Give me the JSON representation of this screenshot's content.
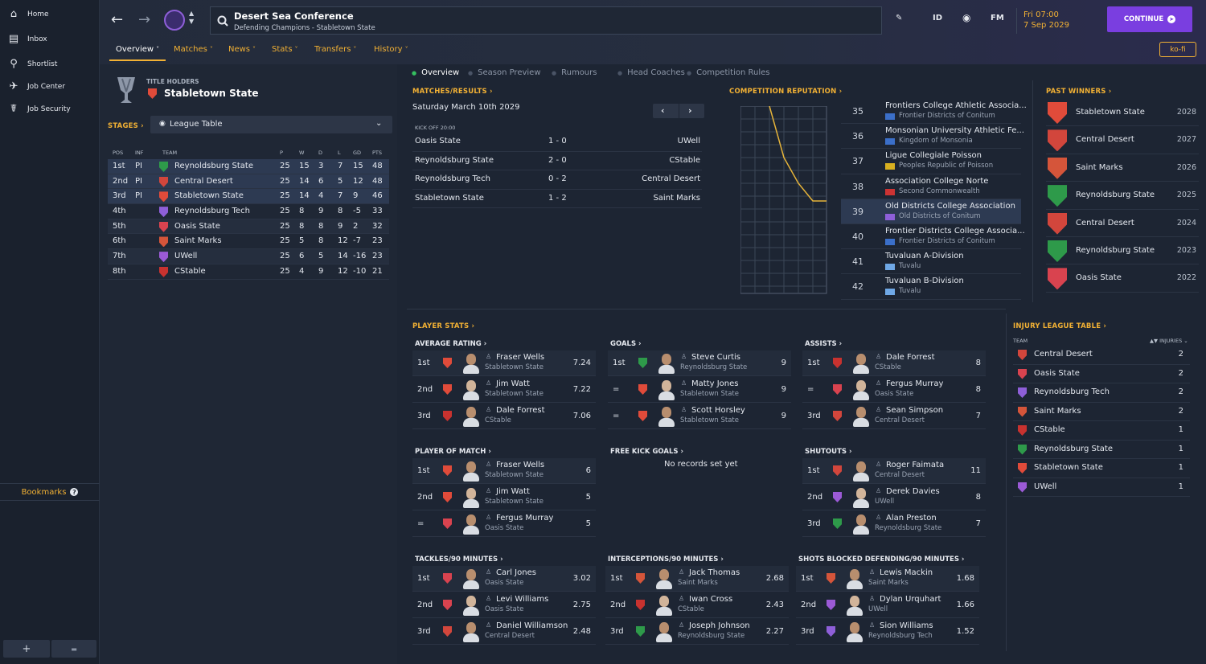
{
  "sidebar": {
    "items": [
      {
        "label": "Home",
        "icon": "home-icon"
      },
      {
        "label": "Inbox",
        "icon": "inbox-icon"
      },
      {
        "label": "Shortlist",
        "icon": "search-icon"
      },
      {
        "label": "Job Center",
        "icon": "job-center-icon"
      },
      {
        "label": "Job Security",
        "icon": "job-security-icon"
      }
    ],
    "bookmarks": "Bookmarks",
    "add": "+",
    "folder": "▬"
  },
  "header": {
    "title": "Desert Sea Conference",
    "subtitle": "Defending Champions - Stabletown State",
    "date_time": "Fri 07:00",
    "date": "7 Sep 2029",
    "continue": "CONTINUE",
    "kofi": "ko-fi",
    "id_label": "ID",
    "fm_label": "FM"
  },
  "tabs": [
    "Overview",
    "Matches",
    "News",
    "Stats",
    "Transfers",
    "History"
  ],
  "subtabs": [
    "Overview",
    "Season Preview",
    "Rumours",
    "Head Coaches",
    "Competition Rules"
  ],
  "holders": {
    "label": "TITLE HOLDERS",
    "team": "Stabletown State"
  },
  "stages": {
    "label": "STAGES",
    "selected": "League Table"
  },
  "league": {
    "headers": [
      "POS",
      "INF",
      "TEAM",
      "P",
      "W",
      "D",
      "L",
      "GD",
      "PTS"
    ],
    "rows": [
      {
        "pos": "1st",
        "inf": "PI",
        "team": "Reynoldsburg State",
        "p": "25",
        "w": "15",
        "d": "3",
        "l": "7",
        "gd": "15",
        "pts": "48",
        "c": "#2e9a4a"
      },
      {
        "pos": "2nd",
        "inf": "PI",
        "team": "Central Desert",
        "p": "25",
        "w": "14",
        "d": "6",
        "l": "5",
        "gd": "12",
        "pts": "48",
        "c": "#d2463c"
      },
      {
        "pos": "3rd",
        "inf": "PI",
        "team": "Stabletown State",
        "p": "25",
        "w": "14",
        "d": "4",
        "l": "7",
        "gd": "9",
        "pts": "46",
        "c": "#e04b3a"
      },
      {
        "pos": "4th",
        "inf": "",
        "team": "Reynoldsburg Tech",
        "p": "25",
        "w": "8",
        "d": "9",
        "l": "8",
        "gd": "-5",
        "pts": "33",
        "c": "#8e5fd8"
      },
      {
        "pos": "5th",
        "inf": "",
        "team": "Oasis State",
        "p": "25",
        "w": "8",
        "d": "8",
        "l": "9",
        "gd": "2",
        "pts": "32",
        "c": "#d9434f"
      },
      {
        "pos": "6th",
        "inf": "",
        "team": "Saint Marks",
        "p": "25",
        "w": "5",
        "d": "8",
        "l": "12",
        "gd": "-7",
        "pts": "23",
        "c": "#d5553a"
      },
      {
        "pos": "7th",
        "inf": "",
        "team": "UWell",
        "p": "25",
        "w": "6",
        "d": "5",
        "l": "14",
        "gd": "-16",
        "pts": "23",
        "c": "#9b5ad6"
      },
      {
        "pos": "8th",
        "inf": "",
        "team": "CStable",
        "p": "25",
        "w": "4",
        "d": "9",
        "l": "12",
        "gd": "-10",
        "pts": "21",
        "c": "#c8322f"
      }
    ]
  },
  "matches": {
    "label": "MATCHES/RESULTS",
    "date": "Saturday March 10th 2029",
    "kickoff": "KICK OFF 20:00",
    "rows": [
      {
        "home": "Oasis State",
        "score": "1 - 0",
        "away": "UWell"
      },
      {
        "home": "Reynoldsburg State",
        "score": "2 - 0",
        "away": "CStable"
      },
      {
        "home": "Reynoldsburg Tech",
        "score": "0 - 2",
        "away": "Central Desert"
      },
      {
        "home": "Stabletown State",
        "score": "1 - 2",
        "away": "Saint Marks"
      }
    ]
  },
  "reputation": {
    "label": "COMPETITION REPUTATION",
    "rows": [
      {
        "rank": "35",
        "name": "Frontiers College Athletic Associa...",
        "nation": "Frontier Districts of Conitum",
        "flag": "#3b6fc9"
      },
      {
        "rank": "36",
        "name": "Monsonian University Athletic Fe...",
        "nation": "Kingdom of Monsonia",
        "flag": "#3b6fc9"
      },
      {
        "rank": "37",
        "name": "Ligue Collegiale Poisson",
        "nation": "Peoples Republic of Poisson",
        "flag": "#d8b020"
      },
      {
        "rank": "38",
        "name": "Association College Norte",
        "nation": "Second Commonwealth",
        "flag": "#cc3333"
      },
      {
        "rank": "39",
        "name": "Old Districts College Association",
        "nation": "Old Districts of Conitum",
        "flag": "#8e5fd8"
      },
      {
        "rank": "40",
        "name": "Frontier Districts College Associa...",
        "nation": "Frontier Districts of Conitum",
        "flag": "#3b6fc9"
      },
      {
        "rank": "41",
        "name": "Tuvaluan A-Division",
        "nation": "Tuvalu",
        "flag": "#6fa8e6"
      },
      {
        "rank": "42",
        "name": "Tuvaluan B-Division",
        "nation": "Tuvalu",
        "flag": "#6fa8e6"
      }
    ]
  },
  "past_winners": {
    "label": "PAST WINNERS",
    "rows": [
      {
        "team": "Stabletown State",
        "year": "2028",
        "c": "#e04b3a"
      },
      {
        "team": "Central Desert",
        "year": "2027",
        "c": "#d2463c"
      },
      {
        "team": "Saint Marks",
        "year": "2026",
        "c": "#d5553a"
      },
      {
        "team": "Reynoldsburg State",
        "year": "2025",
        "c": "#2e9a4a"
      },
      {
        "team": "Central Desert",
        "year": "2024",
        "c": "#d2463c"
      },
      {
        "team": "Reynoldsburg State",
        "year": "2023",
        "c": "#2e9a4a"
      },
      {
        "team": "Oasis State",
        "year": "2022",
        "c": "#d9434f"
      }
    ]
  },
  "player_stats": {
    "label": "PLAYER STATS",
    "no_records": "No records set yet",
    "blocks": [
      {
        "title": "AVERAGE RATING",
        "rows": [
          {
            "pos": "1st",
            "name": "Fraser Wells",
            "team": "Stabletown State",
            "val": "7.24",
            "c": "#e04b3a"
          },
          {
            "pos": "2nd",
            "name": "Jim Watt",
            "team": "Stabletown State",
            "val": "7.22",
            "c": "#e04b3a"
          },
          {
            "pos": "3rd",
            "name": "Dale Forrest",
            "team": "CStable",
            "val": "7.06",
            "c": "#c8322f"
          }
        ]
      },
      {
        "title": "GOALS",
        "rows": [
          {
            "pos": "1st",
            "name": "Steve Curtis",
            "team": "Reynoldsburg State",
            "val": "9",
            "c": "#2e9a4a"
          },
          {
            "pos": "=",
            "name": "Matty Jones",
            "team": "Stabletown State",
            "val": "9",
            "c": "#e04b3a"
          },
          {
            "pos": "=",
            "name": "Scott Horsley",
            "team": "Stabletown State",
            "val": "9",
            "c": "#e04b3a"
          }
        ]
      },
      {
        "title": "ASSISTS",
        "rows": [
          {
            "pos": "1st",
            "name": "Dale Forrest",
            "team": "CStable",
            "val": "8",
            "c": "#c8322f"
          },
          {
            "pos": "=",
            "name": "Fergus Murray",
            "team": "Oasis State",
            "val": "8",
            "c": "#d9434f"
          },
          {
            "pos": "3rd",
            "name": "Sean Simpson",
            "team": "Central Desert",
            "val": "7",
            "c": "#d2463c"
          }
        ]
      },
      {
        "title": "PLAYER OF MATCH",
        "rows": [
          {
            "pos": "1st",
            "name": "Fraser Wells",
            "team": "Stabletown State",
            "val": "6",
            "c": "#e04b3a"
          },
          {
            "pos": "2nd",
            "name": "Jim Watt",
            "team": "Stabletown State",
            "val": "5",
            "c": "#e04b3a"
          },
          {
            "pos": "=",
            "name": "Fergus Murray",
            "team": "Oasis State",
            "val": "5",
            "c": "#d9434f"
          }
        ]
      },
      {
        "title": "FREE KICK GOALS",
        "rows": []
      },
      {
        "title": "SHUTOUTS",
        "rows": [
          {
            "pos": "1st",
            "name": "Roger Faimata",
            "team": "Central Desert",
            "val": "11",
            "c": "#d2463c"
          },
          {
            "pos": "2nd",
            "name": "Derek Davies",
            "team": "UWell",
            "val": "8",
            "c": "#9b5ad6"
          },
          {
            "pos": "3rd",
            "name": "Alan Preston",
            "team": "Reynoldsburg State",
            "val": "7",
            "c": "#2e9a4a"
          }
        ]
      },
      {
        "title": "TACKLES/90 MINUTES",
        "rows": [
          {
            "pos": "1st",
            "name": "Carl Jones",
            "team": "Oasis State",
            "val": "3.02",
            "c": "#d9434f"
          },
          {
            "pos": "2nd",
            "name": "Levi Williams",
            "team": "Oasis State",
            "val": "2.75",
            "c": "#d9434f"
          },
          {
            "pos": "3rd",
            "name": "Daniel Williamson",
            "team": "Central Desert",
            "val": "2.48",
            "c": "#d2463c"
          }
        ]
      },
      {
        "title": "INTERCEPTIONS/90 MINUTES",
        "rows": [
          {
            "pos": "1st",
            "name": "Jack Thomas",
            "team": "Saint Marks",
            "val": "2.68",
            "c": "#d5553a"
          },
          {
            "pos": "2nd",
            "name": "Iwan Cross",
            "team": "CStable",
            "val": "2.43",
            "c": "#c8322f"
          },
          {
            "pos": "3rd",
            "name": "Joseph Johnson",
            "team": "Reynoldsburg State",
            "val": "2.27",
            "c": "#2e9a4a"
          }
        ]
      },
      {
        "title": "SHOTS BLOCKED DEFENDING/90 MINUTES",
        "rows": [
          {
            "pos": "1st",
            "name": "Lewis Mackin",
            "team": "Saint Marks",
            "val": "1.68",
            "c": "#d5553a"
          },
          {
            "pos": "2nd",
            "name": "Dylan Urquhart",
            "team": "UWell",
            "val": "1.66",
            "c": "#9b5ad6"
          },
          {
            "pos": "3rd",
            "name": "Sion Williams",
            "team": "Reynoldsburg Tech",
            "val": "1.52",
            "c": "#8e5fd8"
          }
        ]
      }
    ]
  },
  "injury": {
    "label": "INJURY LEAGUE TABLE",
    "team_hdr": "TEAM",
    "inj_hdr": "INJURIES",
    "rows": [
      {
        "team": "Central Desert",
        "n": "2",
        "c": "#d2463c"
      },
      {
        "team": "Oasis State",
        "n": "2",
        "c": "#d9434f"
      },
      {
        "team": "Reynoldsburg Tech",
        "n": "2",
        "c": "#8e5fd8"
      },
      {
        "team": "Saint Marks",
        "n": "2",
        "c": "#d5553a"
      },
      {
        "team": "CStable",
        "n": "1",
        "c": "#c8322f"
      },
      {
        "team": "Reynoldsburg State",
        "n": "1",
        "c": "#2e9a4a"
      },
      {
        "team": "Stabletown State",
        "n": "1",
        "c": "#e04b3a"
      },
      {
        "team": "UWell",
        "n": "1",
        "c": "#9b5ad6"
      }
    ]
  }
}
